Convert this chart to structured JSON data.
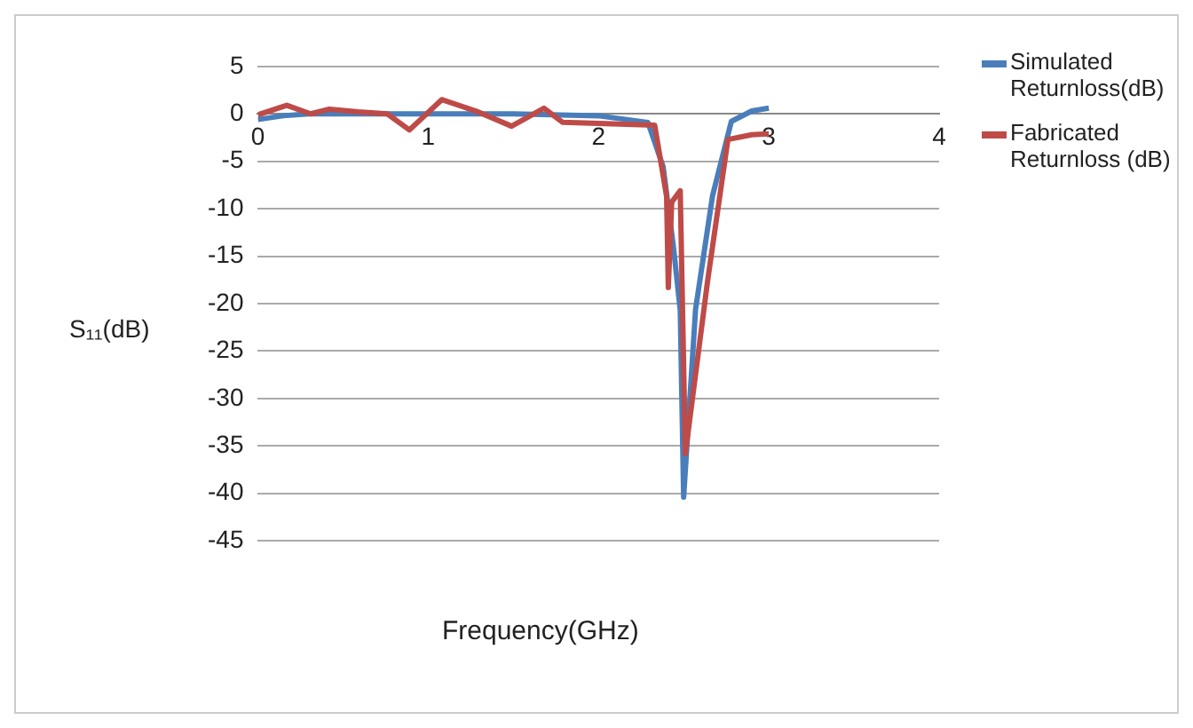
{
  "chart_data": {
    "type": "line",
    "xlabel": "Frequency(GHz)",
    "ylabel": "S₁₁(dB)",
    "xlim": [
      0,
      4
    ],
    "xticks": [
      0,
      1,
      2,
      3,
      4
    ],
    "ylim": [
      -45,
      5
    ],
    "yticks": [
      5,
      0,
      -5,
      -10,
      -15,
      -20,
      -25,
      -30,
      -35,
      -40,
      -45
    ],
    "grid": "y",
    "legend": "top right",
    "marker": "none",
    "line_style": "solid",
    "series": [
      {
        "name": "Simulated Returnloss(dB)",
        "color": "#4a7ebb",
        "x": [
          0,
          0.15,
          0.3,
          0.6,
          1,
          1.5,
          2,
          2.29,
          2.38,
          2.44,
          2.48,
          2.5,
          2.57,
          2.67,
          2.78,
          2.9,
          3
        ],
        "values": [
          -0.6,
          -0.2,
          0,
          0,
          0,
          0,
          -0.2,
          -0.9,
          -5.6,
          -14,
          -20.7,
          -40.4,
          -20.6,
          -8.6,
          -0.8,
          0.3,
          0.6
        ]
      },
      {
        "name": "Fabricated Returnloss (dB)",
        "color": "#be4b48",
        "x": [
          0,
          0.17,
          0.31,
          0.42,
          0.59,
          0.76,
          0.89,
          1.08,
          1.28,
          1.49,
          1.68,
          1.79,
          2,
          2.33,
          2.4,
          2.41,
          2.43,
          2.48,
          2.51,
          2.64,
          2.76,
          2.9,
          3
        ],
        "values": [
          -0.1,
          0.9,
          0,
          0.5,
          0.2,
          0,
          -1.7,
          1.5,
          0.3,
          -1.3,
          0.6,
          -0.9,
          -1,
          -1.2,
          -8.7,
          -18.3,
          -9.3,
          -8.1,
          -35.8,
          -17.7,
          -2.7,
          -2.2,
          -2.1
        ]
      }
    ]
  }
}
